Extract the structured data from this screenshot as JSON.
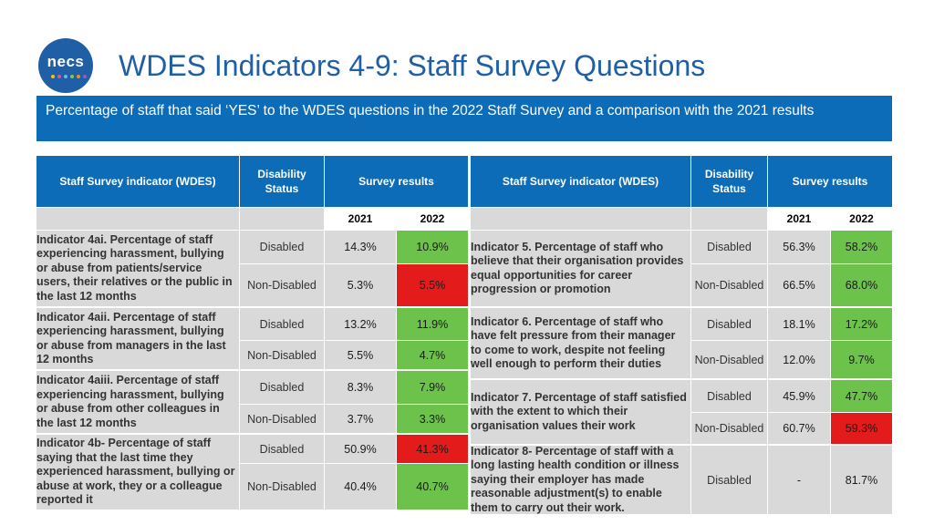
{
  "logo": {
    "text": "necs"
  },
  "title": "WDES Indicators 4-9: Staff Survey Questions",
  "subtitle": "Percentage of staff that said ‘YES’ to the WDES questions in the 2022 Staff Survey and a comparison with the 2021 results",
  "colors": {
    "accent": "#0d6cb8",
    "green": "#6cc24a",
    "red": "#e31b1b",
    "grey": "#d9d9d9"
  },
  "headers": {
    "indicator": "Staff Survey indicator (WDES)",
    "disability_status": "Disability Status",
    "survey_results": "Survey results",
    "year_2021": "2021",
    "year_2022": "2022"
  },
  "left_table": [
    {
      "indicator": "Indicator 4ai. Percentage of staff experiencing harassment, bullying or abuse from patients/service users, their relatives or the public in the last 12 months",
      "rows": [
        {
          "status": "Disabled",
          "v2021": "14.3%",
          "v2022": "10.9%",
          "color2022": "green"
        },
        {
          "status": "Non-Disabled",
          "v2021": "5.3%",
          "v2022": "5.5%",
          "color2022": "red"
        }
      ]
    },
    {
      "indicator": "Indicator 4aii. Percentage of staff experiencing harassment, bullying or abuse from managers in the last 12 months",
      "rows": [
        {
          "status": "Disabled",
          "v2021": "13.2%",
          "v2022": "11.9%",
          "color2022": "green"
        },
        {
          "status": "Non-Disabled",
          "v2021": "5.5%",
          "v2022": "4.7%",
          "color2022": "green"
        }
      ]
    },
    {
      "indicator": "Indicator 4aiii. Percentage of staff experiencing harassment, bullying or abuse from other colleagues in the last 12 months",
      "rows": [
        {
          "status": "Disabled",
          "v2021": "8.3%",
          "v2022": "7.9%",
          "color2022": "green"
        },
        {
          "status": "Non-Disabled",
          "v2021": "3.7%",
          "v2022": "3.3%",
          "color2022": "green"
        }
      ]
    },
    {
      "indicator": "Indicator 4b- Percentage of staff saying that the last time they experienced harassment, bullying or abuse at work, they or a colleague reported it",
      "rows": [
        {
          "status": "Disabled",
          "v2021": "50.9%",
          "v2022": "41.3%",
          "color2022": "red"
        },
        {
          "status": "Non-Disabled",
          "v2021": "40.4%",
          "v2022": "40.7%",
          "color2022": "green"
        }
      ]
    }
  ],
  "right_table": [
    {
      "indicator": "Indicator 5. Percentage of staff who believe that their organisation provides equal opportunities for career progression or promotion",
      "rows": [
        {
          "status": "Disabled",
          "v2021": "56.3%",
          "v2022": "58.2%",
          "color2022": "green"
        },
        {
          "status": "Non-Disabled",
          "v2021": "66.5%",
          "v2022": "68.0%",
          "color2022": "green"
        }
      ]
    },
    {
      "indicator": "Indicator 6. Percentage of staff who have felt pressure from their manager to come to work, despite not feeling well enough to perform their duties",
      "rows": [
        {
          "status": "Disabled",
          "v2021": "18.1%",
          "v2022": "17.2%",
          "color2022": "green"
        },
        {
          "status": "Non-Disabled",
          "v2021": "12.0%",
          "v2022": "9.7%",
          "color2022": "green"
        }
      ]
    },
    {
      "indicator": "Indicator 7. Percentage of staff satisfied with the extent to which their organisation values their work",
      "rows": [
        {
          "status": "Disabled",
          "v2021": "45.9%",
          "v2022": "47.7%",
          "color2022": "green"
        },
        {
          "status": "Non-Disabled",
          "v2021": "60.7%",
          "v2022": "59.3%",
          "color2022": "red"
        }
      ]
    },
    {
      "indicator": "Indicator 8- Percentage of staff with a long lasting health condition or illness saying their employer has made reasonable adjustment(s) to enable them to carry out their work.",
      "rows": [
        {
          "status": "Disabled",
          "v2021": "-",
          "v2022": "81.7%",
          "color2022": "grey"
        }
      ]
    }
  ]
}
